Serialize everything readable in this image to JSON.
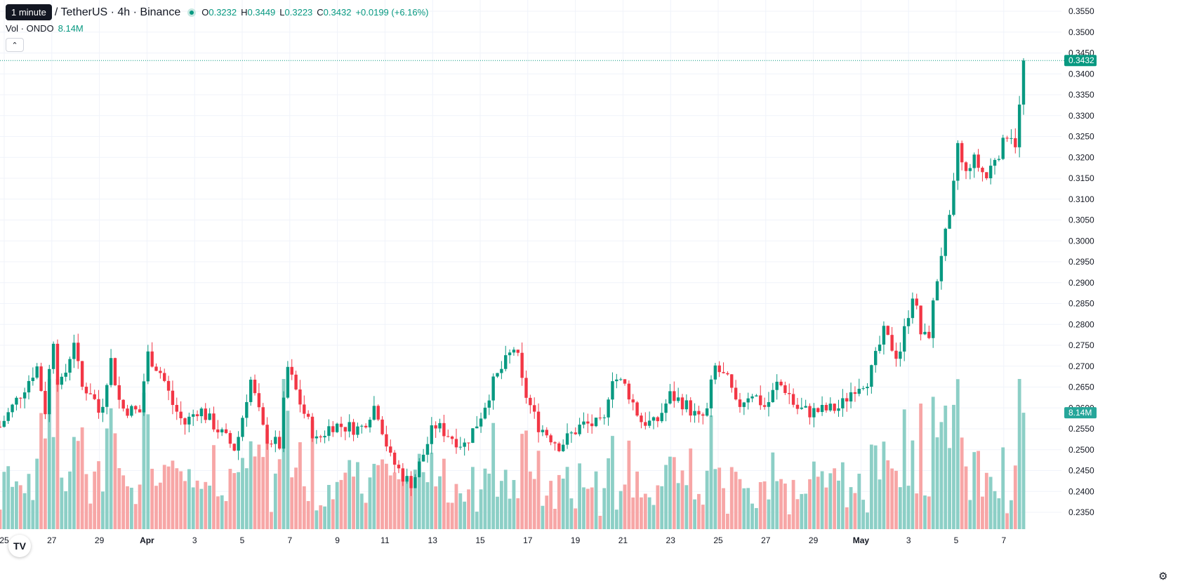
{
  "header": {
    "tooltip": "1 minute",
    "symbol": "/ TetherUS · 4h · Binance",
    "open_label": "O",
    "open": "0.3232",
    "high_label": "H",
    "high": "0.3449",
    "low_label": "L",
    "low": "0.3223",
    "close_label": "C",
    "close": "0.3432",
    "change": "+0.0199 (+6.16%)"
  },
  "volume_legend": {
    "label": "Vol · ONDO",
    "value": "8.14M"
  },
  "price_badge": "0.3432",
  "volume_badge": "8.14M",
  "logo_text": "TV",
  "icons": {
    "collapse": "chevron-up-icon",
    "settings": "gear-icon",
    "logo": "tradingview-logo-icon"
  },
  "colors": {
    "up": "#089981",
    "down": "#f23645",
    "up_vol": "#8ccfc6",
    "down_vol": "#f7a6a6"
  },
  "chart_data": {
    "type": "candlestick",
    "interval": "4h",
    "y_ticks": [
      "0.3550",
      "0.3500",
      "0.3450",
      "0.3400",
      "0.3350",
      "0.3300",
      "0.3250",
      "0.3200",
      "0.3150",
      "0.3100",
      "0.3050",
      "0.3000",
      "0.2950",
      "0.2900",
      "0.2850",
      "0.2800",
      "0.2750",
      "0.2700",
      "0.2650",
      "0.2600",
      "0.2550",
      "0.2500",
      "0.2450",
      "0.2400",
      "0.2350"
    ],
    "ylim": [
      0.2335,
      0.3555
    ],
    "x_ticks": [
      "25",
      "27",
      "29",
      "Apr",
      "3",
      "5",
      "7",
      "9",
      "11",
      "13",
      "15",
      "17",
      "19",
      "21",
      "23",
      "25",
      "27",
      "29",
      "May",
      "3",
      "5",
      "7"
    ],
    "last_price": 0.3432,
    "price_path": [
      [
        0,
        0.2555
      ],
      [
        1.5,
        0.264
      ],
      [
        2.5,
        0.27
      ],
      [
        3.2,
        0.257
      ],
      [
        3.5,
        0.281
      ],
      [
        4.0,
        0.264
      ],
      [
        4.6,
        0.27
      ],
      [
        5.0,
        0.277
      ],
      [
        5.5,
        0.265
      ],
      [
        6.2,
        0.264
      ],
      [
        6.8,
        0.258
      ],
      [
        7.5,
        0.272
      ],
      [
        8.2,
        0.26
      ],
      [
        9.5,
        0.259
      ],
      [
        10.0,
        0.273
      ],
      [
        11.0,
        0.268
      ],
      [
        11.7,
        0.261
      ],
      [
        12.5,
        0.256
      ],
      [
        13.5,
        0.26
      ],
      [
        15.0,
        0.254
      ],
      [
        16.0,
        0.25
      ],
      [
        17.0,
        0.267
      ],
      [
        18.0,
        0.253
      ],
      [
        19.0,
        0.251
      ],
      [
        19.5,
        0.27
      ],
      [
        20.5,
        0.26
      ],
      [
        21.5,
        0.252
      ],
      [
        22.5,
        0.256
      ],
      [
        24.5,
        0.255
      ],
      [
        25.5,
        0.261
      ],
      [
        26.5,
        0.248
      ],
      [
        27.5,
        0.243
      ],
      [
        28.0,
        0.242
      ],
      [
        29.5,
        0.256
      ],
      [
        31.5,
        0.251
      ],
      [
        32.5,
        0.257
      ],
      [
        33.5,
        0.266
      ],
      [
        34.5,
        0.272
      ],
      [
        35.0,
        0.275
      ],
      [
        35.5,
        0.265
      ],
      [
        36.5,
        0.256
      ],
      [
        38.0,
        0.251
      ],
      [
        39.5,
        0.256
      ],
      [
        41.0,
        0.256
      ],
      [
        41.5,
        0.268
      ],
      [
        42.5,
        0.265
      ],
      [
        43.5,
        0.257
      ],
      [
        44.5,
        0.256
      ],
      [
        45.5,
        0.263
      ],
      [
        46.5,
        0.261
      ],
      [
        47.5,
        0.257
      ],
      [
        48.0,
        0.259
      ],
      [
        48.5,
        0.27
      ],
      [
        49.5,
        0.266
      ],
      [
        50.0,
        0.26
      ],
      [
        51.0,
        0.264
      ],
      [
        52.0,
        0.26
      ],
      [
        52.8,
        0.266
      ],
      [
        53.5,
        0.264
      ],
      [
        54.0,
        0.26
      ],
      [
        55.0,
        0.259
      ],
      [
        57.0,
        0.26
      ],
      [
        58.0,
        0.265
      ],
      [
        59.0,
        0.267
      ],
      [
        60.0,
        0.278
      ],
      [
        61.0,
        0.272
      ],
      [
        62.0,
        0.288
      ],
      [
        62.5,
        0.278
      ],
      [
        63.0,
        0.276
      ],
      [
        63.5,
        0.288
      ],
      [
        64.0,
        0.299
      ],
      [
        64.6,
        0.306
      ],
      [
        65.0,
        0.324
      ],
      [
        65.5,
        0.315
      ],
      [
        66.0,
        0.32
      ],
      [
        67.0,
        0.315
      ],
      [
        67.5,
        0.32
      ],
      [
        68.0,
        0.322
      ],
      [
        68.5,
        0.327
      ],
      [
        69.0,
        0.323
      ],
      [
        69.5,
        0.3432
      ]
    ],
    "volume_ylim": [
      0,
      10.5
    ],
    "volume_unit": "M",
    "last_volume": 8.14
  }
}
